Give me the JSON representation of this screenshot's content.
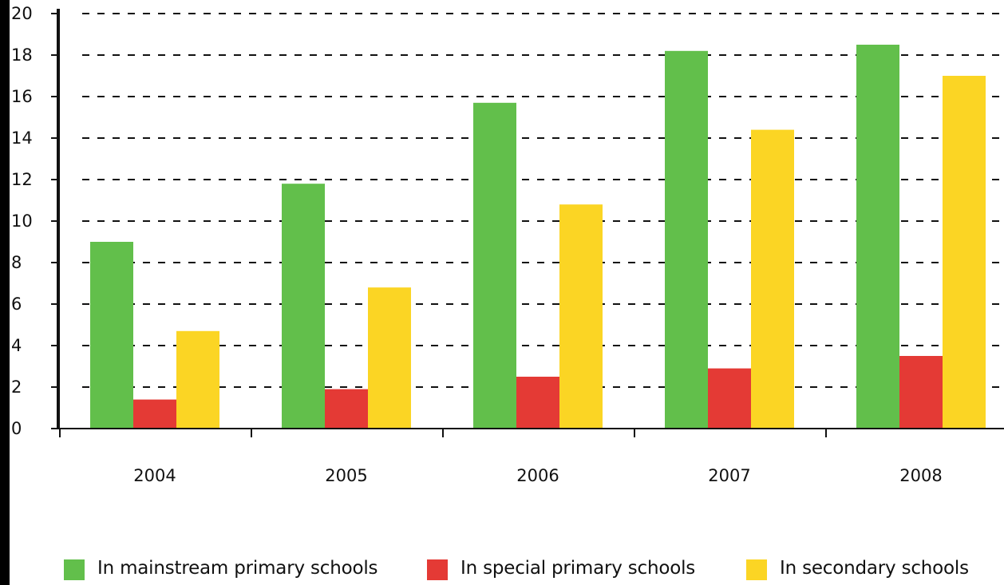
{
  "chart_data": {
    "type": "bar",
    "title": "",
    "xlabel": "",
    "ylabel": "",
    "categories": [
      "2004",
      "2005",
      "2006",
      "2007",
      "2008"
    ],
    "series": [
      {
        "name": "In mainstream primary schools",
        "color": "#62bf4b",
        "values": [
          9.0,
          11.8,
          15.7,
          18.2,
          18.5
        ]
      },
      {
        "name": "In special primary schools",
        "color": "#e43a35",
        "values": [
          1.4,
          1.9,
          2.5,
          2.9,
          3.5
        ]
      },
      {
        "name": "In secondary schools",
        "color": "#fbd524",
        "values": [
          4.7,
          6.8,
          10.8,
          14.4,
          17.0
        ]
      }
    ],
    "ylim": [
      0,
      20
    ],
    "yticks": [
      "0",
      "2",
      "4",
      "6",
      "8",
      "10",
      "12",
      "14",
      "16",
      "18",
      "20"
    ],
    "grid": true,
    "grid_style": "dashed",
    "legend_position": "bottom"
  }
}
